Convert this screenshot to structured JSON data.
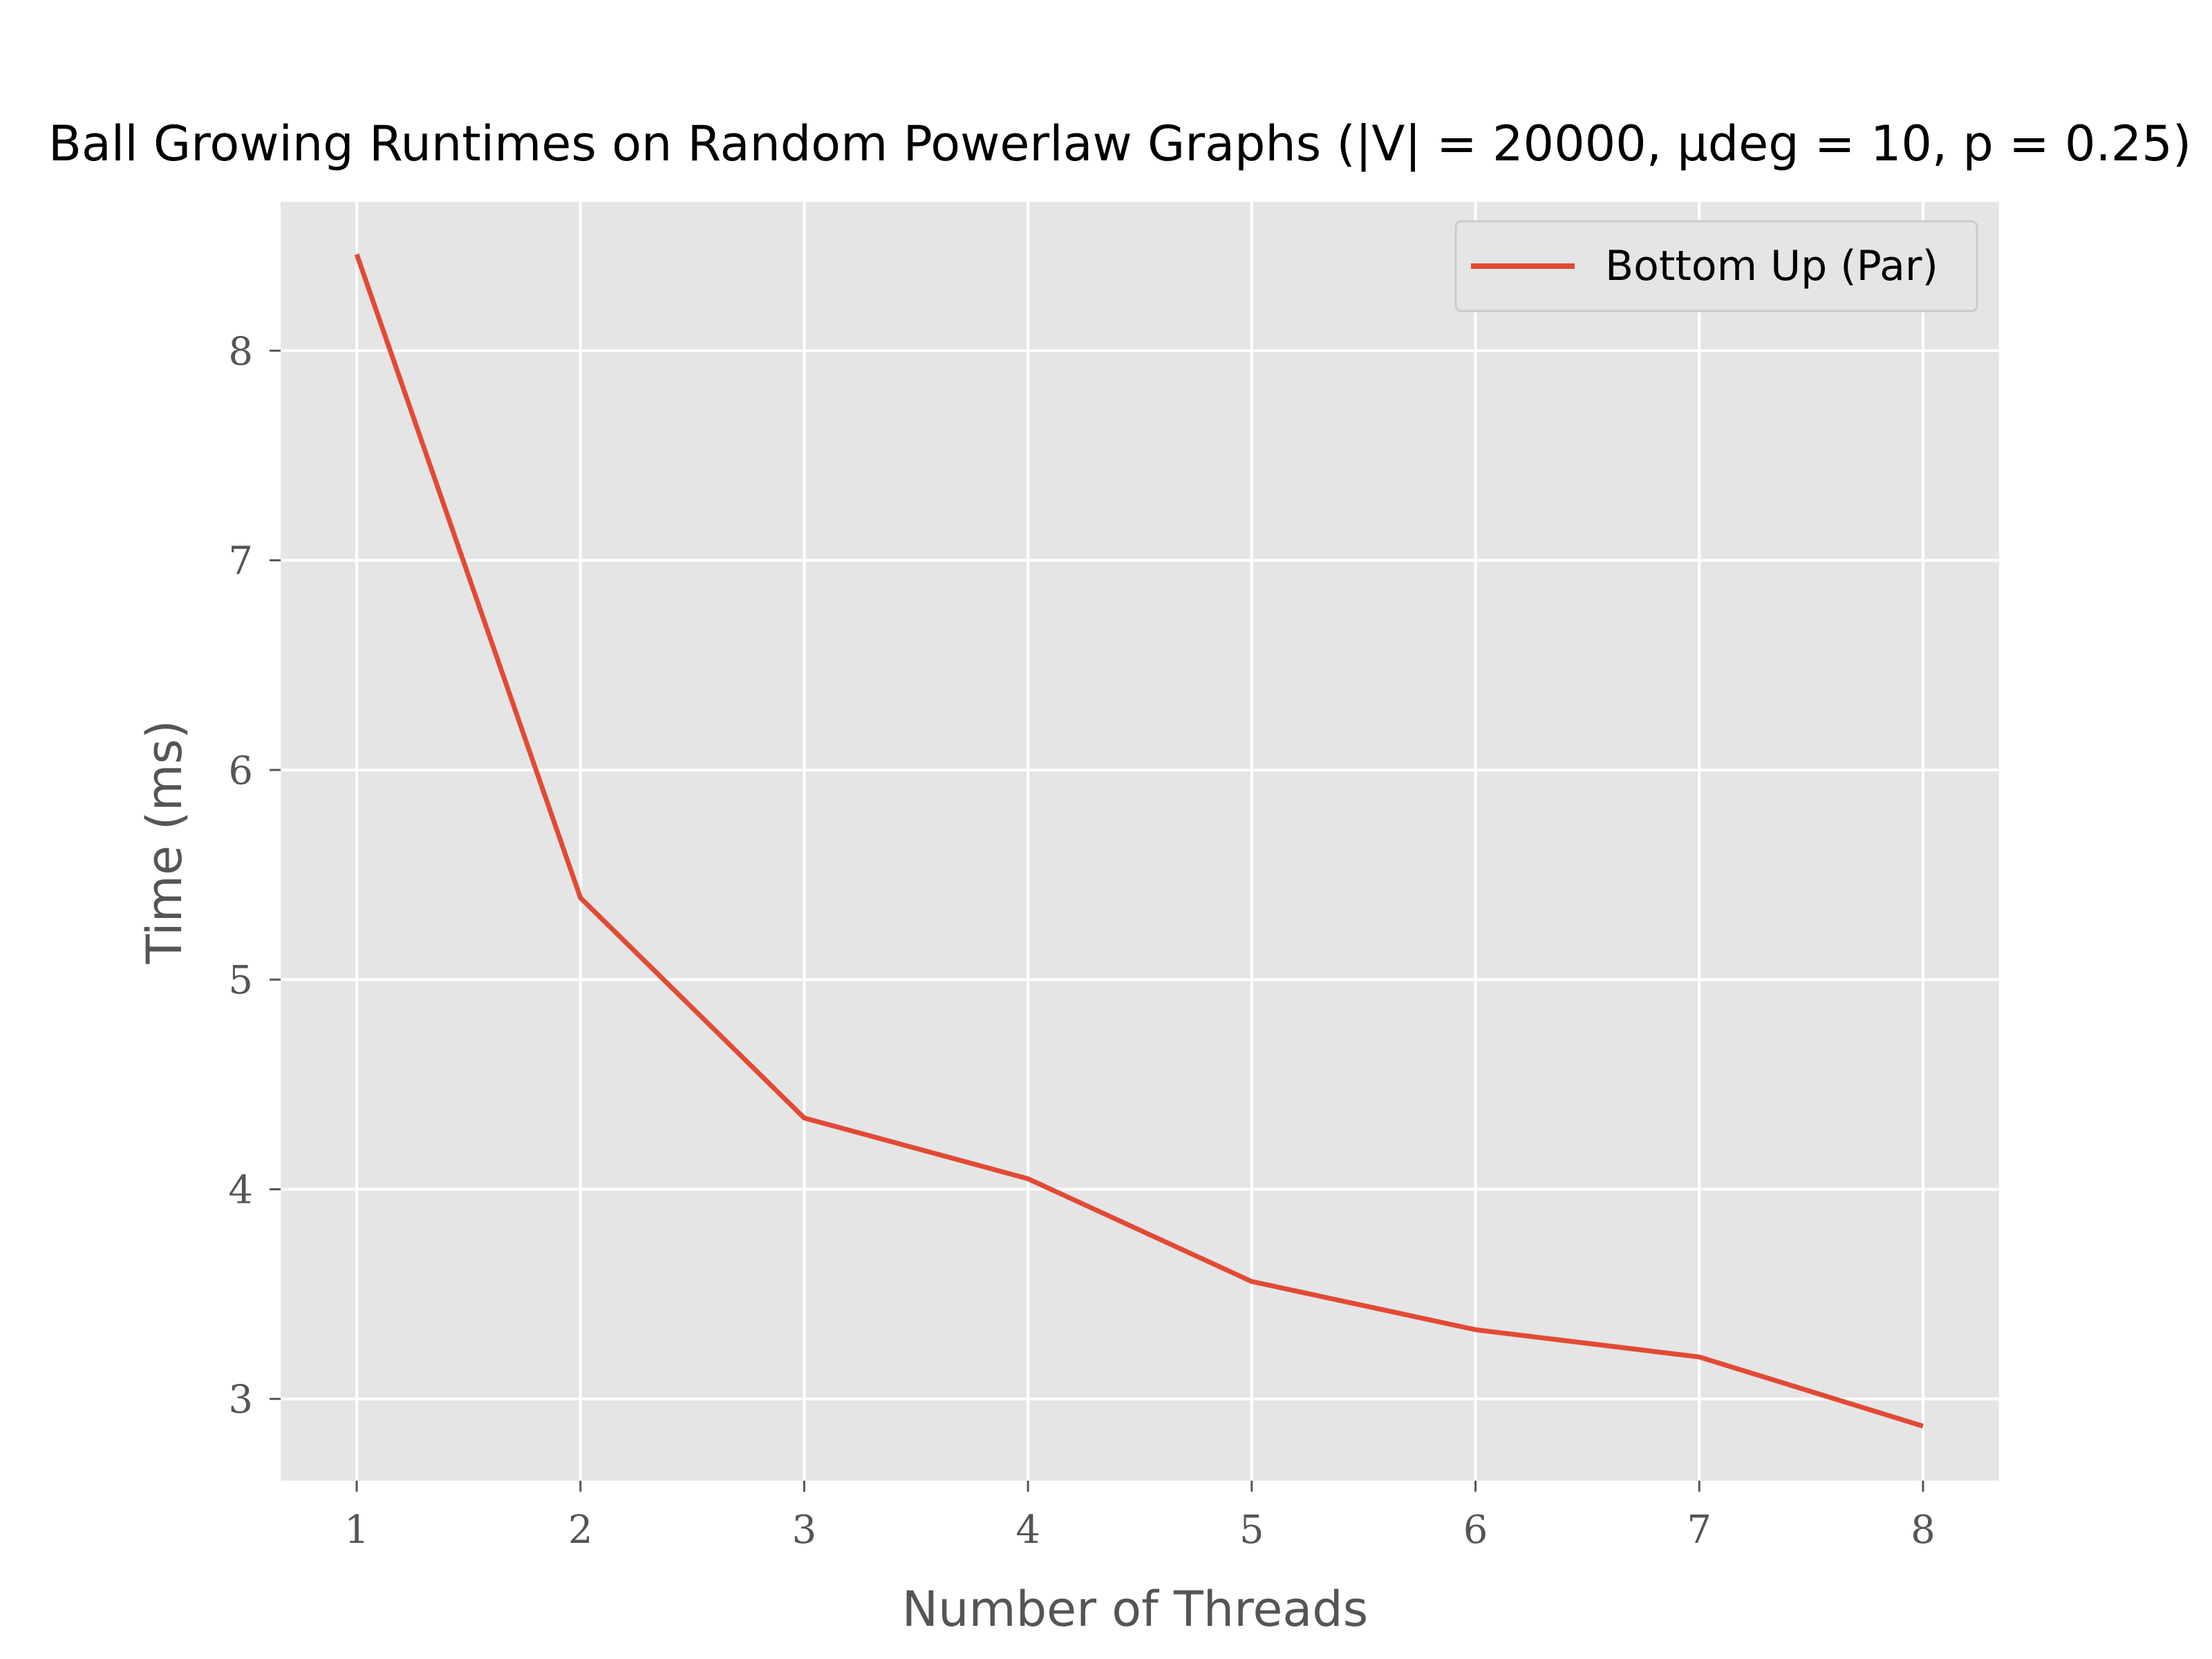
{
  "chart_data": {
    "type": "line",
    "title": "Ball Growing Runtimes on Random Powerlaw Graphs (|V| = 20000, μdeg = 10, p = 0.25)",
    "xlabel": "Number of Threads",
    "ylabel": "Time (ms)",
    "x": [
      1,
      2,
      3,
      4,
      5,
      6,
      7,
      8
    ],
    "xticks": [
      "1",
      "2",
      "3",
      "4",
      "5",
      "6",
      "7",
      "8"
    ],
    "yticks": [
      "3",
      "4",
      "5",
      "6",
      "7",
      "8"
    ],
    "xlim": [
      0.66,
      8.34
    ],
    "ylim": [
      2.61,
      8.71
    ],
    "grid": true,
    "legend_position": "top-right",
    "series": [
      {
        "name": "Bottom Up (Par)",
        "color": "#E24A33",
        "values": [
          8.46,
          5.39,
          4.34,
          4.05,
          3.56,
          3.33,
          3.2,
          2.87
        ]
      }
    ],
    "background_color": "#E5E5E5",
    "grid_color": "#FFFFFF"
  }
}
